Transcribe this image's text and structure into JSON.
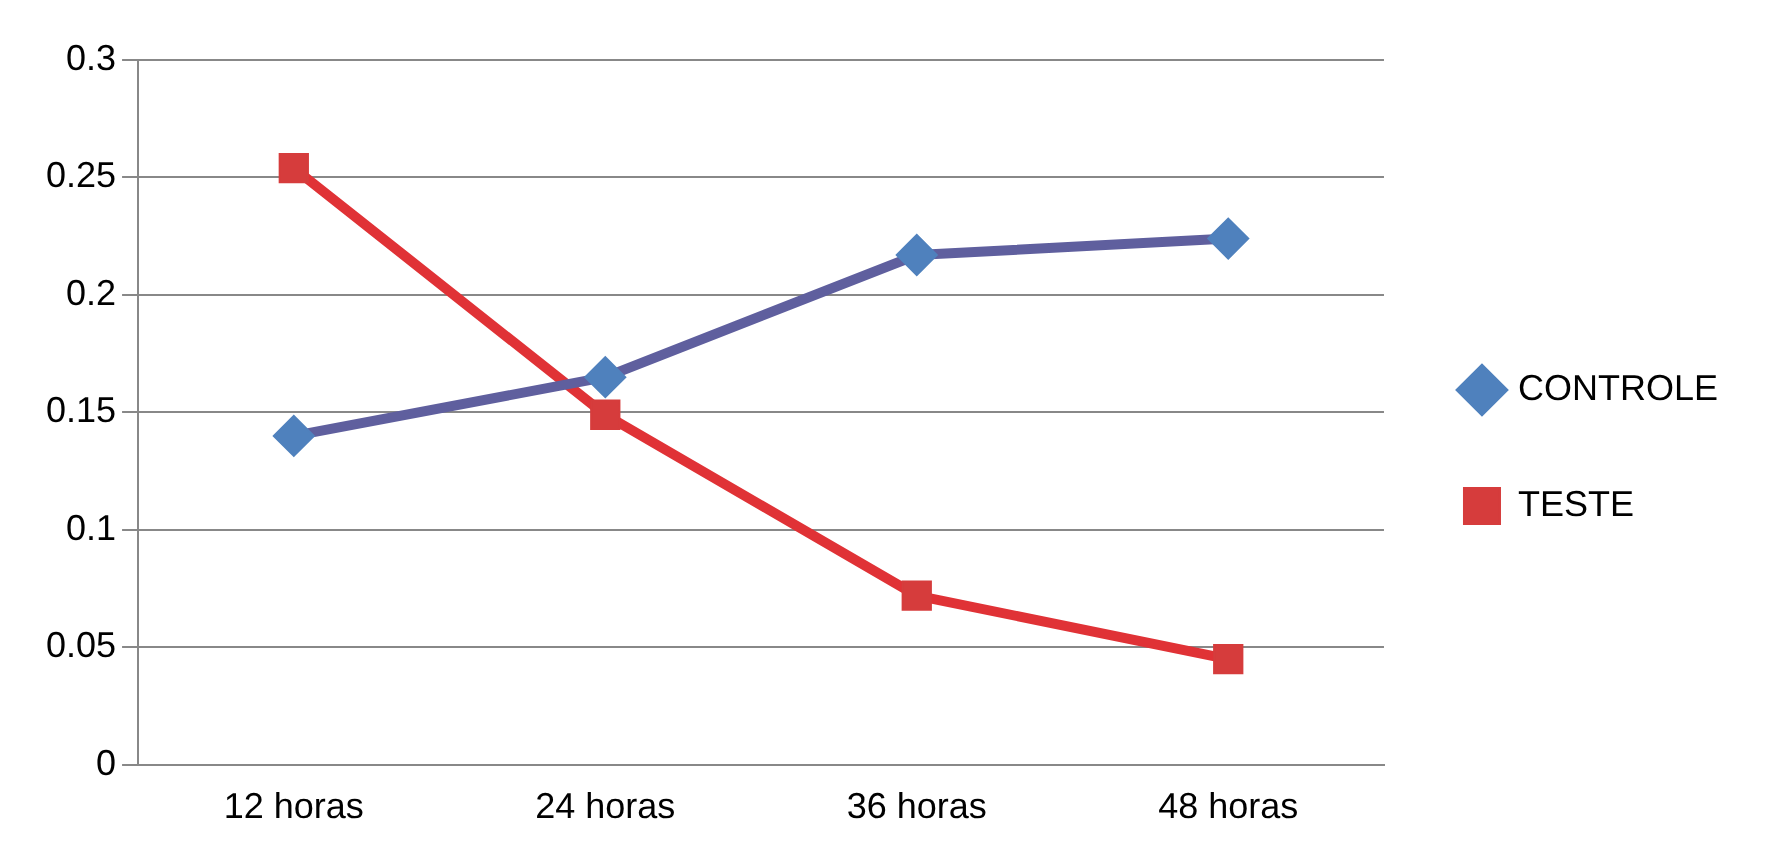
{
  "chart_data": {
    "type": "line",
    "categories": [
      "12 horas",
      "24 horas",
      "36 horas",
      "48 horas"
    ],
    "series": [
      {
        "name": "CONTROLE",
        "color": "#5f5f9e",
        "marker": "diamond",
        "values": [
          0.14,
          0.165,
          0.217,
          0.224
        ]
      },
      {
        "name": "TESTE",
        "color": "#e03236",
        "marker": "square",
        "values": [
          0.254,
          0.149,
          0.072,
          0.045
        ]
      }
    ],
    "ylim": [
      0,
      0.3
    ],
    "yticks": [
      0,
      0.05,
      0.1,
      0.15,
      0.2,
      0.25,
      0.3
    ],
    "grid": "y",
    "legend": "right",
    "line_style": "solid"
  }
}
